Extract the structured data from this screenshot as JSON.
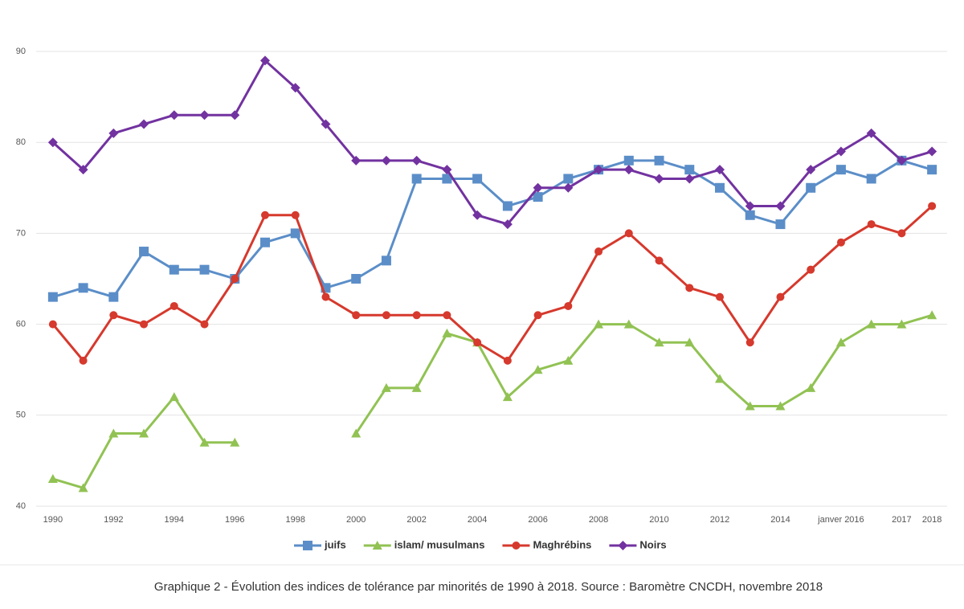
{
  "chart_data": {
    "type": "line",
    "categories": [
      "1990",
      null,
      "1992",
      null,
      "1994",
      null,
      "1996",
      null,
      "1998",
      null,
      "2000",
      null,
      "2002",
      null,
      "2004",
      null,
      "2006",
      null,
      "2008",
      null,
      "2010",
      null,
      "2012",
      null,
      "2014",
      null,
      "janver 2016",
      null,
      "2017",
      "2018"
    ],
    "series": [
      {
        "name": "juifs",
        "color": "#5b8ec8",
        "marker": "square",
        "values": [
          63,
          64,
          63,
          68,
          66,
          66,
          65,
          69,
          70,
          64,
          65,
          67,
          76,
          76,
          76,
          73,
          74,
          76,
          77,
          78,
          78,
          77,
          75,
          72,
          71,
          75,
          77,
          76,
          78,
          77
        ]
      },
      {
        "name": "islam/ musulmans",
        "color": "#91c253",
        "marker": "triangle",
        "values": [
          43,
          42,
          48,
          48,
          52,
          47,
          47,
          null,
          null,
          null,
          48,
          53,
          53,
          59,
          58,
          52,
          55,
          56,
          60,
          60,
          58,
          58,
          54,
          51,
          51,
          53,
          58,
          60,
          60,
          61
        ]
      },
      {
        "name": "Maghrébins",
        "color": "#d6392d",
        "marker": "circle",
        "values": [
          60,
          56,
          61,
          60,
          62,
          60,
          65,
          72,
          72,
          63,
          61,
          61,
          61,
          61,
          58,
          56,
          61,
          62,
          68,
          70,
          67,
          64,
          63,
          58,
          63,
          66,
          69,
          71,
          70,
          73
        ]
      },
      {
        "name": "Noirs",
        "color": "#7232a0",
        "marker": "diamond",
        "values": [
          80,
          77,
          81,
          82,
          83,
          83,
          83,
          89,
          86,
          82,
          78,
          78,
          78,
          77,
          72,
          71,
          75,
          75,
          77,
          77,
          76,
          76,
          77,
          73,
          73,
          77,
          79,
          81,
          78,
          79
        ]
      }
    ],
    "ylim": [
      40,
      90
    ],
    "yticks": [
      40,
      50,
      60,
      70,
      80,
      90
    ],
    "grid": true,
    "legend": "bottom",
    "caption": "Graphique 2 - Évolution des indices de tolérance par minorités de 1990 à 2018. Source : Baromètre CNCDH, novembre 2018"
  }
}
